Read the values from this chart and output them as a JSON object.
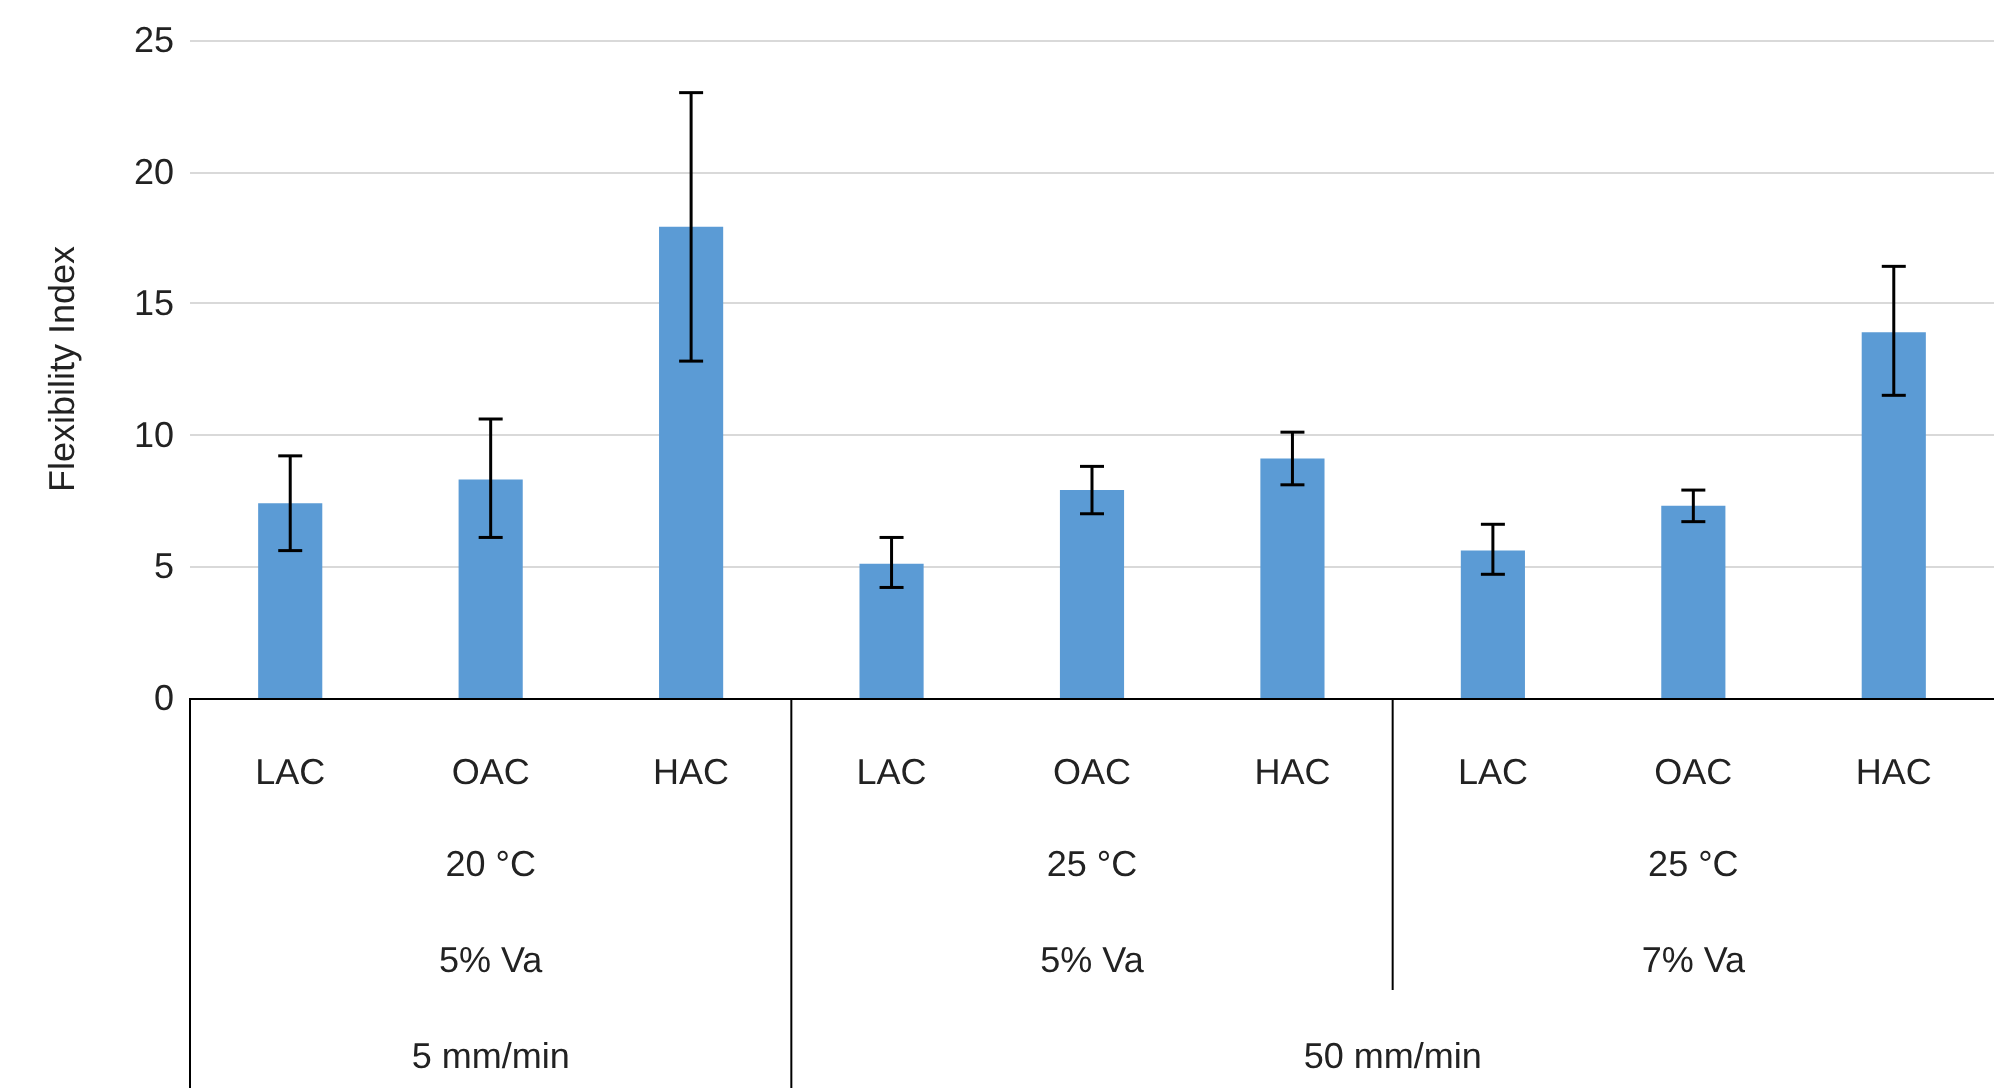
{
  "chart_data": {
    "type": "bar",
    "ylabel": "Flexibility Index",
    "categories": [
      "LAC",
      "OAC",
      "HAC",
      "LAC",
      "OAC",
      "HAC",
      "LAC",
      "OAC",
      "HAC"
    ],
    "values": [
      7.4,
      8.3,
      17.9,
      5.1,
      7.9,
      9.1,
      5.6,
      7.3,
      13.9
    ],
    "errors": [
      [
        5.6,
        9.2
      ],
      [
        6.1,
        10.6
      ],
      [
        12.8,
        23.0
      ],
      [
        4.2,
        6.1
      ],
      [
        7.0,
        8.8
      ],
      [
        8.1,
        10.1
      ],
      [
        4.7,
        6.6
      ],
      [
        6.7,
        7.9
      ],
      [
        11.5,
        16.4
      ]
    ],
    "color": "#5b9bd5",
    "ylim": [
      0,
      25
    ],
    "yticks": [
      0,
      5,
      10,
      15,
      20,
      25
    ],
    "grid": "y",
    "annotations": [
      "20 °C",
      "25 °C",
      "25 °C",
      "5% Va",
      "5% Va",
      "7% Va",
      "5 mm/min",
      "50 mm/min"
    ]
  }
}
